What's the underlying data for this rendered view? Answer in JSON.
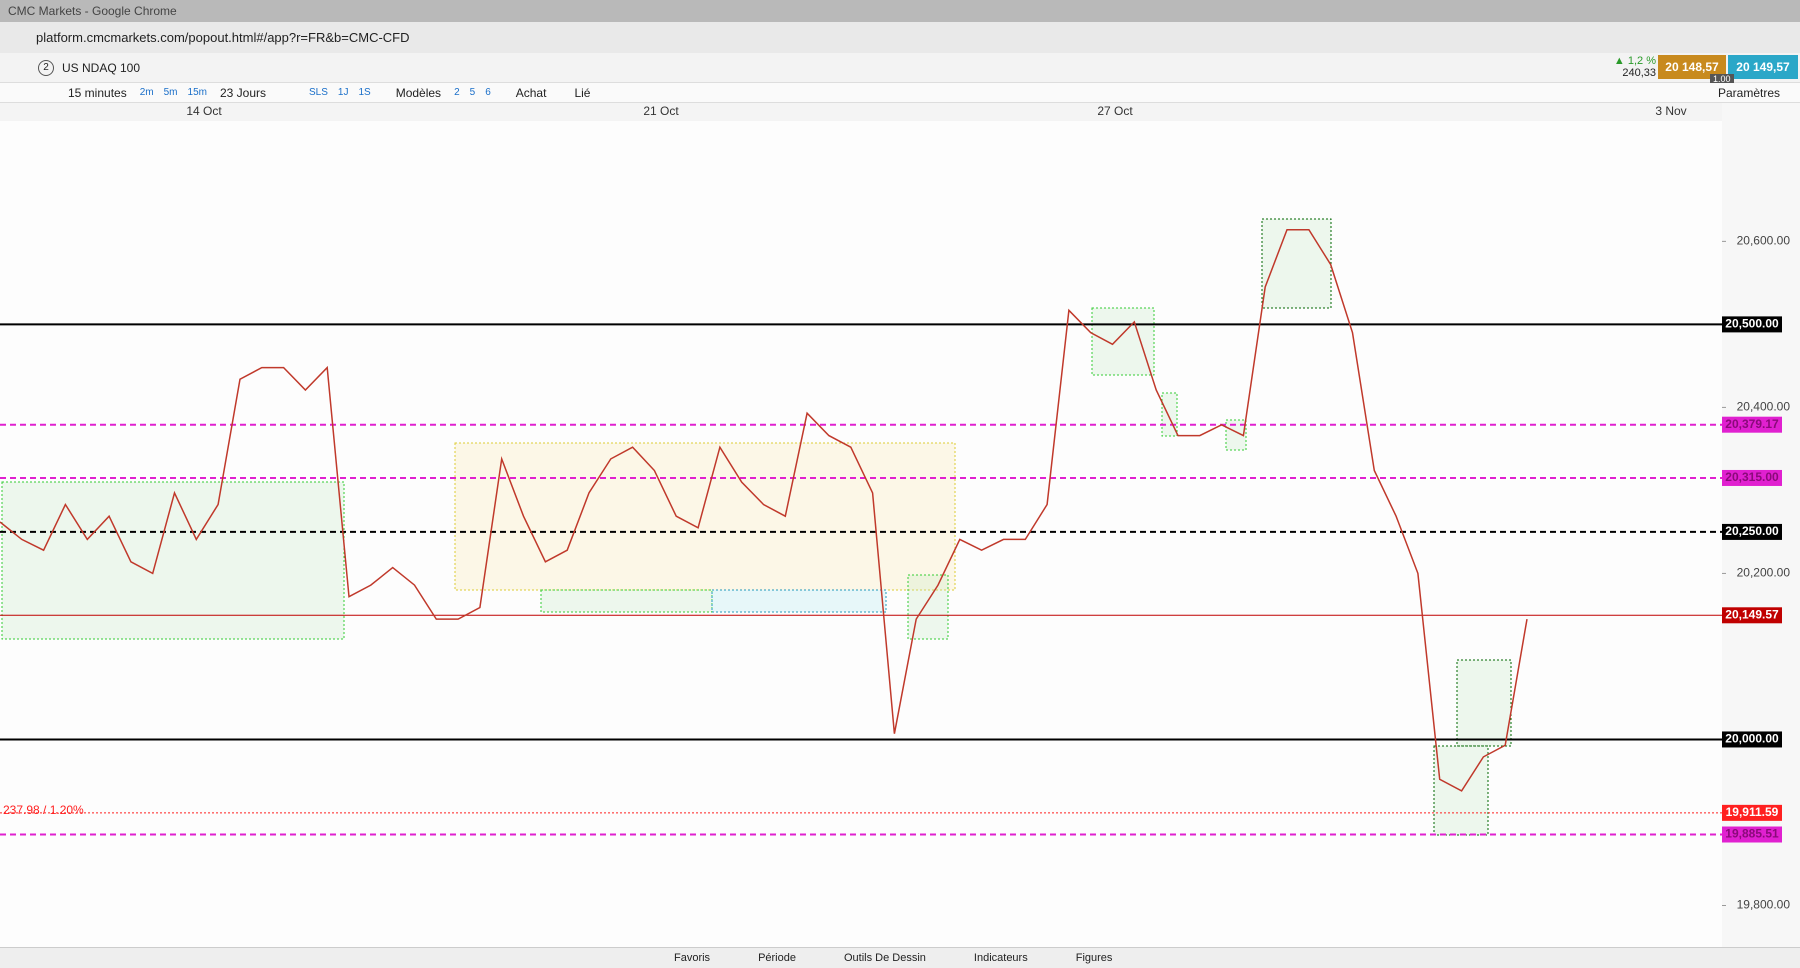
{
  "window": {
    "title": "CMC Markets - Google Chrome",
    "url": "platform.cmcmarkets.com/popout.html#/app?r=FR&b=CMC-CFD"
  },
  "tab": {
    "number": "2",
    "instrument": "US NDAQ 100"
  },
  "quote": {
    "change": "▲ 1,2 %",
    "change_points": "240,33",
    "sell": "20 148,57",
    "buy": "20 149,57",
    "size": "1.00"
  },
  "toolbar": {
    "interval": "15 minutes",
    "quick_intervals": [
      "2m",
      "5m",
      "15m"
    ],
    "range": "23 Jours",
    "ranges": [
      "SLS",
      "1J",
      "1S"
    ],
    "templates": "Modèles",
    "numbers": [
      "2",
      "5",
      "6"
    ],
    "trade": "Achat",
    "linked": "Lié",
    "settings": "Paramètres"
  },
  "chart_data": {
    "type": "line",
    "color": "#c0392b",
    "date_labels": [
      "14 Oct",
      "21 Oct",
      "27 Oct",
      "3 Nov"
    ],
    "values": [
      20262,
      20241,
      20228,
      20283,
      20241,
      20269,
      20214,
      20200,
      20297,
      20241,
      20283,
      20434,
      20448,
      20448,
      20421,
      20448,
      20172,
      20186,
      20207,
      20186,
      20145,
      20145,
      20159,
      20338,
      20269,
      20214,
      20228,
      20297,
      20338,
      20352,
      20324,
      20269,
      20255,
      20352,
      20310,
      20283,
      20269,
      20393,
      20366,
      20352,
      20297,
      20007,
      20145,
      20186,
      20241,
      20228,
      20241,
      20241,
      20283,
      20517,
      20490,
      20476,
      20503,
      20421,
      20366,
      20366,
      20379,
      20366,
      20545,
      20614,
      20614,
      20572,
      20490,
      20324,
      20269,
      20200,
      19952,
      19938,
      19979,
      19993,
      20145
    ],
    "ylim": [
      19750,
      20745
    ],
    "yticks": [
      {
        "value": 19800,
        "label": "19,800.00"
      },
      {
        "value": 20200,
        "label": "20,200.00"
      },
      {
        "value": 20400,
        "label": "20,400.00"
      },
      {
        "value": 20600,
        "label": "20,600.00"
      }
    ],
    "levels": [
      {
        "value": 20500,
        "label": "20,500.00",
        "color": "#000000",
        "style": "solid"
      },
      {
        "value": 20379.17,
        "label": "20,379.17",
        "color": "#e020d0",
        "style": "dashed"
      },
      {
        "value": 20315,
        "label": "20,315.00",
        "color": "#e020d0",
        "style": "dashed"
      },
      {
        "value": 20250,
        "label": "20,250.00",
        "color": "#000000",
        "style": "dashed"
      },
      {
        "value": 20149.57,
        "label": "20,149.57",
        "color": "#c00000",
        "style": "thin"
      },
      {
        "value": 20000,
        "label": "20,000.00",
        "color": "#000000",
        "style": "solid"
      },
      {
        "value": 19911.59,
        "label": "19,911.59",
        "color": "#ff2020",
        "style": "dotted"
      },
      {
        "value": 19885.51,
        "label": "19,885.51",
        "color": "#e020d0",
        "style": "dashed"
      }
    ],
    "annotation": "237.98 / 1.20%"
  },
  "footer": {
    "tabs": [
      "Favoris",
      "Période",
      "Outils De Dessin",
      "Indicateurs",
      "Figures"
    ]
  }
}
